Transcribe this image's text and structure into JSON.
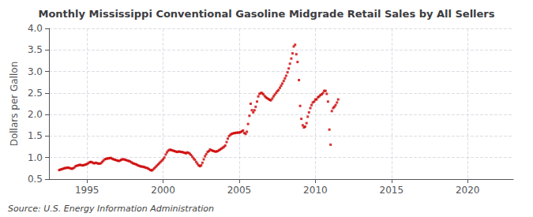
{
  "chart_data": {
    "type": "scatter",
    "title": "Monthly Mississippi Conventional Gasoline Midgrade Retail Sales by All Sellers",
    "ylabel": "Dollars per Gallon",
    "annotations": [
      "Source: U.S. Energy Information Administration"
    ],
    "color": "#CC0000",
    "marker": "square",
    "grid": true,
    "xlim": [
      1992.5,
      2023.0
    ],
    "xticks": [
      1995,
      2000,
      2005,
      2010,
      2015,
      2020
    ],
    "ylim": [
      0.5,
      4.0
    ],
    "yticks": [
      0.5,
      {
        "value": 1.0,
        "label": "1.0"
      },
      1.5,
      {
        "value": 2.0,
        "label": "2.0"
      },
      2.5,
      {
        "value": 3.0,
        "label": "3.0"
      },
      3.5,
      {
        "value": 4.0,
        "label": "4.0"
      }
    ],
    "x": [
      1993.17,
      1993.25,
      1993.33,
      1993.42,
      1993.5,
      1993.58,
      1993.67,
      1993.75,
      1993.83,
      1993.92,
      1994.0,
      1994.08,
      1994.17,
      1994.25,
      1994.33,
      1994.42,
      1994.5,
      1994.58,
      1994.67,
      1994.75,
      1994.83,
      1994.92,
      1995.0,
      1995.08,
      1995.17,
      1995.25,
      1995.33,
      1995.42,
      1995.5,
      1995.58,
      1995.67,
      1995.75,
      1995.83,
      1995.92,
      1996.0,
      1996.08,
      1996.17,
      1996.25,
      1996.33,
      1996.42,
      1996.5,
      1996.58,
      1996.67,
      1996.75,
      1996.83,
      1996.92,
      1997.0,
      1997.08,
      1997.17,
      1997.25,
      1997.33,
      1997.42,
      1997.5,
      1997.58,
      1997.67,
      1997.75,
      1997.83,
      1997.92,
      1998.0,
      1998.08,
      1998.17,
      1998.25,
      1998.33,
      1998.42,
      1998.5,
      1998.58,
      1998.67,
      1998.75,
      1998.83,
      1998.92,
      1999.0,
      1999.08,
      1999.17,
      1999.25,
      1999.33,
      1999.42,
      1999.5,
      1999.58,
      1999.67,
      1999.75,
      1999.83,
      1999.92,
      2000.0,
      2000.08,
      2000.17,
      2000.25,
      2000.33,
      2000.42,
      2000.5,
      2000.58,
      2000.67,
      2000.75,
      2000.83,
      2000.92,
      2001.0,
      2001.08,
      2001.17,
      2001.25,
      2001.33,
      2001.42,
      2001.5,
      2001.58,
      2001.67,
      2001.75,
      2001.83,
      2001.92,
      2002.0,
      2002.08,
      2002.17,
      2002.25,
      2002.33,
      2002.42,
      2002.5,
      2002.58,
      2002.67,
      2002.75,
      2002.83,
      2002.92,
      2003.0,
      2003.08,
      2003.17,
      2003.25,
      2003.33,
      2003.42,
      2003.5,
      2003.58,
      2003.67,
      2003.75,
      2003.83,
      2003.92,
      2004.0,
      2004.08,
      2004.17,
      2004.25,
      2004.33,
      2004.42,
      2004.5,
      2004.58,
      2004.67,
      2004.75,
      2004.83,
      2004.92,
      2005.0,
      2005.08,
      2005.17,
      2005.25,
      2005.33,
      2005.42,
      2005.5,
      2005.58,
      2005.67,
      2005.75,
      2005.83,
      2005.92,
      2006.0,
      2006.08,
      2006.17,
      2006.25,
      2006.33,
      2006.42,
      2006.5,
      2006.58,
      2006.67,
      2006.75,
      2006.83,
      2006.92,
      2007.0,
      2007.08,
      2007.17,
      2007.25,
      2007.33,
      2007.42,
      2007.5,
      2007.58,
      2007.67,
      2007.75,
      2007.83,
      2007.92,
      2008.0,
      2008.08,
      2008.17,
      2008.25,
      2008.33,
      2008.42,
      2008.5,
      2008.58,
      2008.67,
      2008.75,
      2008.83,
      2008.92,
      2009.0,
      2009.08,
      2009.17,
      2009.25,
      2009.33,
      2009.42,
      2009.5,
      2009.58,
      2009.67,
      2009.75,
      2009.83,
      2009.92,
      2010.0,
      2010.08,
      2010.17,
      2010.25,
      2010.33,
      2010.42,
      2010.5,
      2010.58,
      2010.67,
      2010.75,
      2010.83,
      2010.92,
      2011.0,
      2011.08,
      2011.17,
      2011.25,
      2011.33,
      2011.42,
      2011.5
    ],
    "values": [
      0.71,
      0.72,
      0.73,
      0.74,
      0.75,
      0.76,
      0.76,
      0.77,
      0.76,
      0.75,
      0.74,
      0.75,
      0.77,
      0.8,
      0.81,
      0.82,
      0.83,
      0.83,
      0.82,
      0.82,
      0.83,
      0.84,
      0.85,
      0.87,
      0.89,
      0.9,
      0.89,
      0.87,
      0.87,
      0.88,
      0.87,
      0.86,
      0.86,
      0.87,
      0.9,
      0.93,
      0.96,
      0.97,
      0.98,
      0.98,
      0.99,
      0.99,
      0.97,
      0.96,
      0.95,
      0.94,
      0.93,
      0.92,
      0.93,
      0.95,
      0.96,
      0.96,
      0.95,
      0.94,
      0.93,
      0.92,
      0.91,
      0.89,
      0.87,
      0.86,
      0.85,
      0.84,
      0.82,
      0.81,
      0.8,
      0.79,
      0.79,
      0.78,
      0.77,
      0.76,
      0.75,
      0.73,
      0.71,
      0.7,
      0.72,
      0.75,
      0.78,
      0.81,
      0.84,
      0.87,
      0.9,
      0.93,
      0.96,
      1.0,
      1.07,
      1.12,
      1.16,
      1.18,
      1.18,
      1.17,
      1.16,
      1.15,
      1.14,
      1.13,
      1.14,
      1.14,
      1.13,
      1.13,
      1.12,
      1.11,
      1.1,
      1.12,
      1.11,
      1.09,
      1.06,
      1.02,
      0.98,
      0.95,
      0.9,
      0.86,
      0.82,
      0.8,
      0.82,
      0.88,
      0.96,
      1.03,
      1.08,
      1.13,
      1.15,
      1.19,
      1.17,
      1.16,
      1.15,
      1.14,
      1.14,
      1.15,
      1.17,
      1.19,
      1.21,
      1.23,
      1.25,
      1.28,
      1.36,
      1.44,
      1.5,
      1.53,
      1.55,
      1.56,
      1.57,
      1.57,
      1.58,
      1.58,
      1.58,
      1.59,
      1.61,
      1.63,
      1.57,
      1.55,
      1.6,
      1.78,
      1.97,
      2.25,
      2.1,
      2.05,
      2.1,
      2.18,
      2.3,
      2.42,
      2.48,
      2.5,
      2.5,
      2.47,
      2.43,
      2.4,
      2.38,
      2.36,
      2.34,
      2.33,
      2.37,
      2.42,
      2.46,
      2.5,
      2.54,
      2.57,
      2.62,
      2.67,
      2.72,
      2.78,
      2.84,
      2.9,
      2.98,
      3.07,
      3.18,
      3.3,
      3.42,
      3.58,
      3.62,
      3.4,
      3.22,
      2.8,
      2.2,
      1.9,
      1.75,
      1.7,
      1.72,
      1.8,
      1.95,
      2.05,
      2.15,
      2.22,
      2.28,
      2.3,
      2.35,
      2.35,
      2.4,
      2.42,
      2.45,
      2.47,
      2.5,
      2.55,
      2.55,
      2.48,
      2.3,
      1.65,
      1.3,
      2.08,
      2.15,
      2.18,
      2.22,
      2.28,
      2.35
    ]
  }
}
